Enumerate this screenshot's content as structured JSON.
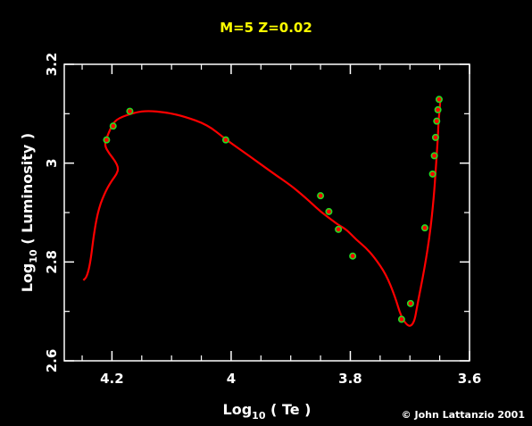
{
  "chart_data": {
    "type": "line",
    "title": "M=5 Z=0.02",
    "xlabel": "Log10 ( Te )",
    "ylabel": "Log10 ( Luminosity )",
    "xlim": [
      4.28,
      3.6
    ],
    "ylim": [
      2.6,
      3.2
    ],
    "x_ticks": [
      "4.2",
      "4",
      "3.8",
      "3.6"
    ],
    "y_ticks": [
      "2.6",
      "2.8",
      "3",
      "3.2"
    ],
    "x_tick_values": [
      4.2,
      4.0,
      3.8,
      3.6
    ],
    "y_tick_values": [
      2.6,
      2.8,
      3.0,
      3.2
    ],
    "x_minor_ticks": [
      4.25,
      4.15,
      4.1,
      4.05,
      3.95,
      3.9,
      3.85,
      3.75,
      3.7,
      3.65
    ],
    "y_minor_ticks": [
      2.7,
      2.9,
      3.1
    ],
    "series": [
      {
        "color": "#ff0000",
        "track": [
          [
            4.248,
            2.763
          ],
          [
            4.242,
            2.77
          ],
          [
            4.236,
            2.8
          ],
          [
            4.23,
            2.86
          ],
          [
            4.222,
            2.91
          ],
          [
            4.21,
            2.945
          ],
          [
            4.2,
            2.965
          ],
          [
            4.192,
            2.978
          ],
          [
            4.189,
            2.99
          ],
          [
            4.195,
            3.005
          ],
          [
            4.205,
            3.02
          ],
          [
            4.212,
            3.035
          ],
          [
            4.21,
            3.048
          ],
          [
            4.2,
            3.077
          ],
          [
            4.19,
            3.091
          ],
          [
            4.16,
            3.103
          ],
          [
            4.14,
            3.106
          ],
          [
            4.11,
            3.103
          ],
          [
            4.08,
            3.095
          ],
          [
            4.04,
            3.078
          ],
          [
            4.009,
            3.048
          ],
          [
            3.97,
            3.015
          ],
          [
            3.93,
            2.98
          ],
          [
            3.9,
            2.955
          ],
          [
            3.88,
            2.935
          ],
          [
            3.866,
            2.92
          ],
          [
            3.85,
            2.902
          ],
          [
            3.83,
            2.884
          ],
          [
            3.82,
            2.875
          ],
          [
            3.806,
            2.865
          ],
          [
            3.79,
            2.845
          ],
          [
            3.775,
            2.83
          ],
          [
            3.76,
            2.81
          ],
          [
            3.74,
            2.775
          ],
          [
            3.725,
            2.73
          ],
          [
            3.715,
            2.69
          ],
          [
            3.705,
            2.672
          ],
          [
            3.698,
            2.67
          ],
          [
            3.692,
            2.682
          ],
          [
            3.688,
            2.71
          ],
          [
            3.675,
            2.79
          ],
          [
            3.666,
            2.86
          ],
          [
            3.66,
            2.93
          ],
          [
            3.657,
            2.98
          ],
          [
            3.655,
            3.018
          ],
          [
            3.653,
            3.054
          ],
          [
            3.652,
            3.085
          ],
          [
            3.65,
            3.109
          ],
          [
            3.649,
            3.13
          ]
        ],
        "markers": [
          [
            4.209,
            3.047
          ],
          [
            4.198,
            3.075
          ],
          [
            4.17,
            3.105
          ],
          [
            4.009,
            3.047
          ],
          [
            3.85,
            2.934
          ],
          [
            3.836,
            2.902
          ],
          [
            3.82,
            2.866
          ],
          [
            3.796,
            2.812
          ],
          [
            3.714,
            2.684
          ],
          [
            3.699,
            2.716
          ],
          [
            3.675,
            2.869
          ],
          [
            3.662,
            2.978
          ],
          [
            3.659,
            3.015
          ],
          [
            3.657,
            3.052
          ],
          [
            3.655,
            3.085
          ],
          [
            3.653,
            3.108
          ],
          [
            3.651,
            3.129
          ]
        ],
        "marker_color": "#22dd22"
      }
    ],
    "grid": false
  },
  "credit": "© John Lattanzio 2001"
}
